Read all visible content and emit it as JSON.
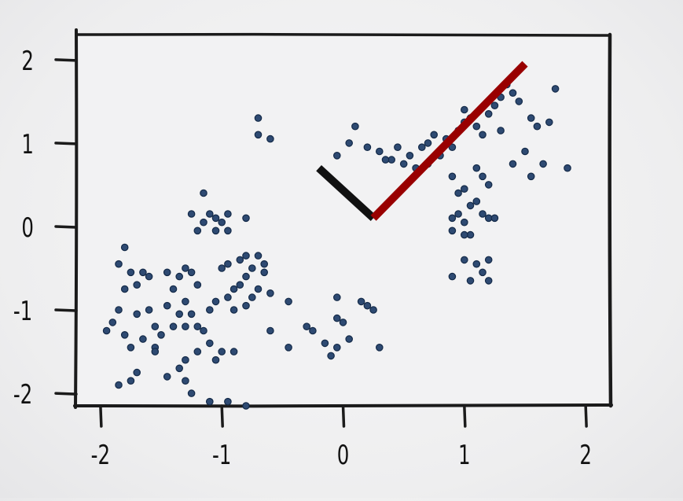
{
  "chart_data": {
    "type": "scatter",
    "title": "",
    "xlabel": "",
    "ylabel": "",
    "xlim": [
      -2.2,
      2.2
    ],
    "ylim": [
      -2.15,
      2.3
    ],
    "x_ticks": [
      -2,
      -1,
      0,
      1,
      2
    ],
    "x_tick_labels": [
      "-2",
      "-1",
      "0",
      "1",
      "2"
    ],
    "y_ticks": [
      -2,
      -1,
      0,
      1,
      2
    ],
    "y_tick_labels": [
      "-2",
      "-1",
      "0",
      "1",
      "2"
    ],
    "grid": false,
    "legend": "none",
    "style": "xkcd",
    "point_color": "#2e4a72",
    "background_color": "#f2f2f3",
    "vectors": [
      {
        "from": [
          0.25,
          0.1
        ],
        "to": [
          1.5,
          1.95
        ],
        "color": "#990000"
      },
      {
        "from": [
          0.25,
          0.1
        ],
        "to": [
          -0.2,
          0.7
        ],
        "color": "#111111"
      }
    ],
    "points": [
      [
        -1.8,
        -0.25
      ],
      [
        -1.85,
        -0.45
      ],
      [
        -1.75,
        -0.55
      ],
      [
        -1.65,
        -0.55
      ],
      [
        -1.6,
        -0.6
      ],
      [
        -1.7,
        -0.7
      ],
      [
        -1.8,
        -0.75
      ],
      [
        -1.85,
        -1.0
      ],
      [
        -1.7,
        -1.05
      ],
      [
        -1.9,
        -1.15
      ],
      [
        -1.95,
        -1.25
      ],
      [
        -1.8,
        -1.3
      ],
      [
        -1.6,
        -1.0
      ],
      [
        -1.55,
        -1.2
      ],
      [
        -1.65,
        -1.35
      ],
      [
        -1.75,
        -1.45
      ],
      [
        -1.55,
        -1.45
      ],
      [
        -1.5,
        -1.3
      ],
      [
        -1.45,
        -0.95
      ],
      [
        -1.4,
        -0.75
      ],
      [
        -1.35,
        -0.6
      ],
      [
        -1.45,
        -0.55
      ],
      [
        -1.3,
        -0.5
      ],
      [
        -1.25,
        -0.55
      ],
      [
        -1.2,
        -0.7
      ],
      [
        -1.3,
        -0.9
      ],
      [
        -1.35,
        -1.05
      ],
      [
        -1.25,
        -1.05
      ],
      [
        -1.4,
        -1.2
      ],
      [
        -1.3,
        -1.2
      ],
      [
        -1.2,
        -1.2
      ],
      [
        -1.15,
        -1.25
      ],
      [
        -1.1,
        -1.0
      ],
      [
        -1.05,
        -0.9
      ],
      [
        -0.95,
        -0.85
      ],
      [
        -0.9,
        -0.75
      ],
      [
        -0.85,
        -0.7
      ],
      [
        -0.8,
        -0.6
      ],
      [
        -0.75,
        -0.5
      ],
      [
        -0.65,
        -0.55
      ],
      [
        -0.7,
        -0.75
      ],
      [
        -0.75,
        -0.85
      ],
      [
        -0.8,
        -0.95
      ],
      [
        -0.9,
        -1.0
      ],
      [
        -0.95,
        -0.45
      ],
      [
        -1.0,
        -0.5
      ],
      [
        -0.85,
        -0.4
      ],
      [
        -0.8,
        -0.35
      ],
      [
        -0.7,
        -0.35
      ],
      [
        -0.65,
        -0.45
      ],
      [
        -1.1,
        -1.4
      ],
      [
        -1.0,
        -1.5
      ],
      [
        -0.9,
        -1.5
      ],
      [
        -1.05,
        -1.6
      ],
      [
        -1.2,
        -1.5
      ],
      [
        -1.3,
        -1.6
      ],
      [
        -1.35,
        -1.7
      ],
      [
        -1.45,
        -1.8
      ],
      [
        -1.3,
        -1.85
      ],
      [
        -1.25,
        -2.0
      ],
      [
        -1.1,
        -2.1
      ],
      [
        -0.95,
        -2.1
      ],
      [
        -0.8,
        -2.15
      ],
      [
        -1.7,
        -1.75
      ],
      [
        -1.75,
        -1.85
      ],
      [
        -1.85,
        -1.9
      ],
      [
        -1.55,
        -1.5
      ],
      [
        -1.2,
        -0.05
      ],
      [
        -1.15,
        0.05
      ],
      [
        -1.05,
        0.1
      ],
      [
        -1.0,
        0.05
      ],
      [
        -1.05,
        -0.05
      ],
      [
        -0.95,
        -0.05
      ],
      [
        -1.25,
        0.15
      ],
      [
        -1.1,
        0.15
      ],
      [
        -0.95,
        0.15
      ],
      [
        -0.8,
        0.1
      ],
      [
        -1.15,
        0.4
      ],
      [
        -0.7,
        1.3
      ],
      [
        -0.7,
        1.1
      ],
      [
        -0.6,
        1.05
      ],
      [
        -0.6,
        -0.8
      ],
      [
        -0.6,
        -1.25
      ],
      [
        -0.45,
        -0.9
      ],
      [
        -0.45,
        -1.45
      ],
      [
        -0.3,
        -1.2
      ],
      [
        -0.25,
        -1.25
      ],
      [
        -0.15,
        -1.4
      ],
      [
        -0.05,
        -0.85
      ],
      [
        -0.05,
        -1.1
      ],
      [
        0.0,
        -1.15
      ],
      [
        -0.05,
        -1.45
      ],
      [
        -0.1,
        -1.55
      ],
      [
        0.05,
        -1.35
      ],
      [
        0.2,
        -0.95
      ],
      [
        0.25,
        -1.0
      ],
      [
        0.15,
        -0.9
      ],
      [
        0.3,
        -1.45
      ],
      [
        -0.05,
        0.85
      ],
      [
        0.05,
        1.0
      ],
      [
        0.1,
        1.2
      ],
      [
        0.2,
        0.95
      ],
      [
        0.3,
        0.9
      ],
      [
        0.4,
        0.8
      ],
      [
        0.5,
        0.75
      ],
      [
        0.45,
        0.95
      ],
      [
        0.55,
        0.85
      ],
      [
        0.65,
        0.95
      ],
      [
        0.7,
        1.0
      ],
      [
        0.75,
        1.1
      ],
      [
        0.85,
        1.05
      ],
      [
        0.9,
        0.95
      ],
      [
        0.95,
        1.15
      ],
      [
        1.0,
        1.25
      ],
      [
        1.05,
        1.3
      ],
      [
        1.1,
        1.2
      ],
      [
        1.15,
        1.1
      ],
      [
        1.2,
        1.35
      ],
      [
        1.25,
        1.45
      ],
      [
        1.3,
        1.55
      ],
      [
        1.35,
        1.7
      ],
      [
        1.4,
        1.6
      ],
      [
        1.45,
        1.5
      ],
      [
        1.55,
        1.3
      ],
      [
        1.6,
        1.2
      ],
      [
        1.7,
        1.25
      ],
      [
        1.75,
        1.65
      ],
      [
        1.65,
        0.75
      ],
      [
        1.5,
        0.9
      ],
      [
        1.4,
        0.75
      ],
      [
        1.55,
        0.6
      ],
      [
        1.85,
        0.7
      ],
      [
        1.1,
        0.7
      ],
      [
        1.15,
        0.6
      ],
      [
        1.2,
        0.5
      ],
      [
        0.9,
        0.6
      ],
      [
        0.95,
        0.4
      ],
      [
        1.0,
        0.45
      ],
      [
        1.05,
        0.25
      ],
      [
        1.1,
        0.3
      ],
      [
        1.15,
        0.15
      ],
      [
        1.2,
        0.1
      ],
      [
        1.25,
        0.1
      ],
      [
        0.9,
        0.1
      ],
      [
        0.95,
        0.15
      ],
      [
        1.0,
        0.05
      ],
      [
        1.05,
        -0.1
      ],
      [
        1.0,
        -0.1
      ],
      [
        0.9,
        -0.05
      ],
      [
        1.0,
        -0.4
      ],
      [
        1.1,
        -0.45
      ],
      [
        1.15,
        -0.55
      ],
      [
        1.2,
        -0.4
      ],
      [
        0.9,
        -0.6
      ],
      [
        1.05,
        -0.65
      ],
      [
        1.2,
        -0.65
      ],
      [
        0.7,
        0.75
      ],
      [
        0.8,
        0.85
      ],
      [
        0.6,
        0.7
      ],
      [
        0.35,
        0.8
      ],
      [
        1.0,
        1.4
      ],
      [
        1.3,
        1.15
      ]
    ]
  }
}
